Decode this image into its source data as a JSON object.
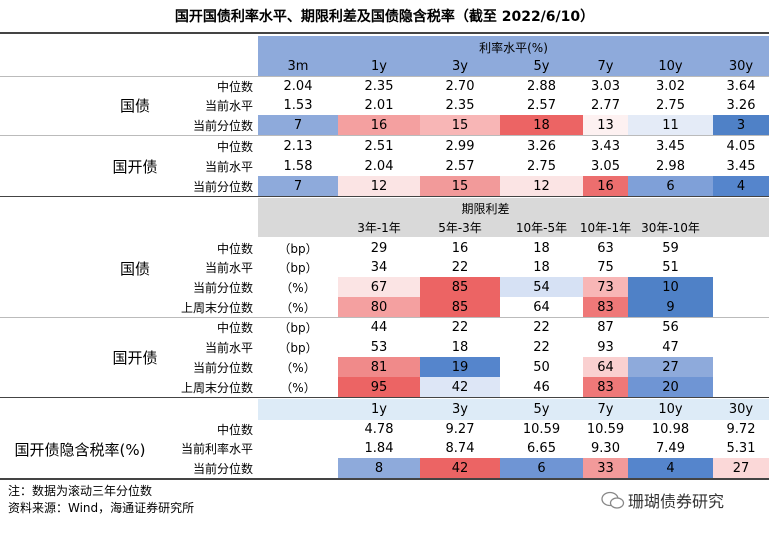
{
  "title": "国开国债利率水平、期限利差及国债隐含税率（截至 2022/6/10）",
  "section1": {
    "header": "利率水平(%)",
    "columns": [
      "3m",
      "1y",
      "3y",
      "5y",
      "7y",
      "10y",
      "30y"
    ],
    "groups": [
      {
        "label": "国债",
        "rows": [
          {
            "label": "中位数",
            "values": [
              "2.04",
              "2.35",
              "2.70",
              "2.88",
              "3.03",
              "3.02",
              "3.64"
            ]
          },
          {
            "label": "当前水平",
            "values": [
              "1.53",
              "2.01",
              "2.35",
              "2.57",
              "2.77",
              "2.75",
              "3.26"
            ]
          },
          {
            "label": "当前分位数",
            "values": [
              "7",
              "16",
              "15",
              "18",
              "13",
              "11",
              "3"
            ],
            "colors": [
              "#8eaadb",
              "#f4a0a0",
              "#f8b6b6",
              "#ec6464",
              "#fdf1f1",
              "#e4ebf7",
              "#4f81c7"
            ]
          }
        ]
      },
      {
        "label": "国开债",
        "rows": [
          {
            "label": "中位数",
            "values": [
              "2.13",
              "2.51",
              "2.99",
              "3.26",
              "3.43",
              "3.45",
              "4.05"
            ]
          },
          {
            "label": "当前水平",
            "values": [
              "1.58",
              "2.04",
              "2.57",
              "2.75",
              "3.05",
              "2.98",
              "3.45"
            ]
          },
          {
            "label": "当前分位数",
            "values": [
              "7",
              "12",
              "15",
              "12",
              "16",
              "6",
              "4"
            ],
            "colors": [
              "#8eaadb",
              "#fbe4e4",
              "#f29a9a",
              "#fbe4e4",
              "#ec6e6e",
              "#7fa0d8",
              "#5585cc"
            ]
          }
        ]
      }
    ]
  },
  "section2": {
    "header": "期限利差",
    "columns": [
      "3年-1年",
      "5年-3年",
      "10年-5年",
      "10年-1年",
      "30年-10年"
    ],
    "groups": [
      {
        "label": "国债",
        "rows": [
          {
            "label": "中位数",
            "unit": "（bp）",
            "values": [
              "29",
              "16",
              "18",
              "63",
              "59"
            ]
          },
          {
            "label": "当前水平",
            "unit": "（bp）",
            "values": [
              "34",
              "22",
              "18",
              "75",
              "51"
            ]
          },
          {
            "label": "当前分位数",
            "unit": "（%）",
            "values": [
              "67",
              "85",
              "54",
              "73",
              "10"
            ],
            "colors": [
              "#fbe4e4",
              "#ec6464",
              "#d6e1f4",
              "#f8b6b6",
              "#4f81c7"
            ]
          },
          {
            "label": "上周末分位数",
            "unit": "（%）",
            "values": [
              "80",
              "85",
              "64",
              "83",
              "9"
            ],
            "colors": [
              "#f4a0a0",
              "#ec6464",
              "#ffffff",
              "#ef7878",
              "#4f81c7"
            ]
          }
        ]
      },
      {
        "label": "国开债",
        "rows": [
          {
            "label": "中位数",
            "unit": "（bp）",
            "values": [
              "44",
              "22",
              "22",
              "87",
              "56"
            ]
          },
          {
            "label": "当前水平",
            "unit": "（bp）",
            "values": [
              "53",
              "18",
              "22",
              "93",
              "47"
            ]
          },
          {
            "label": "当前分位数",
            "unit": "（%）",
            "values": [
              "81",
              "19",
              "50",
              "64",
              "27"
            ],
            "colors": [
              "#f08a8a",
              "#5585cc",
              "#ffffff",
              "#fad0d0",
              "#8eaadb"
            ]
          },
          {
            "label": "上周末分位数",
            "unit": "（%）",
            "values": [
              "95",
              "42",
              "46",
              "83",
              "20"
            ],
            "colors": [
              "#ec6464",
              "#dde6f6",
              "#ffffff",
              "#ef7878",
              "#6f95d4"
            ]
          }
        ]
      }
    ]
  },
  "section3": {
    "label": "国开债隐含税率(%)",
    "columns": [
      "1y",
      "3y",
      "5y",
      "7y",
      "10y",
      "30y"
    ],
    "rows": [
      {
        "label": "中位数",
        "values": [
          "4.78",
          "9.27",
          "10.59",
          "10.59",
          "10.98",
          "9.72"
        ]
      },
      {
        "label": "当前利率水平",
        "values": [
          "1.84",
          "8.74",
          "6.65",
          "9.30",
          "7.49",
          "5.31"
        ]
      },
      {
        "label": "当前分位数",
        "values": [
          "8",
          "42",
          "6",
          "33",
          "4",
          "27"
        ],
        "colors": [
          "#8eaadb",
          "#ec6464",
          "#6f95d4",
          "#f29a9a",
          "#5585cc",
          "#fbd8d8"
        ]
      }
    ]
  },
  "notes": [
    "注：数据为滚动三年分位数",
    "资料来源：Wind，海通证券研究所"
  ],
  "watermark": "珊瑚债券研究"
}
